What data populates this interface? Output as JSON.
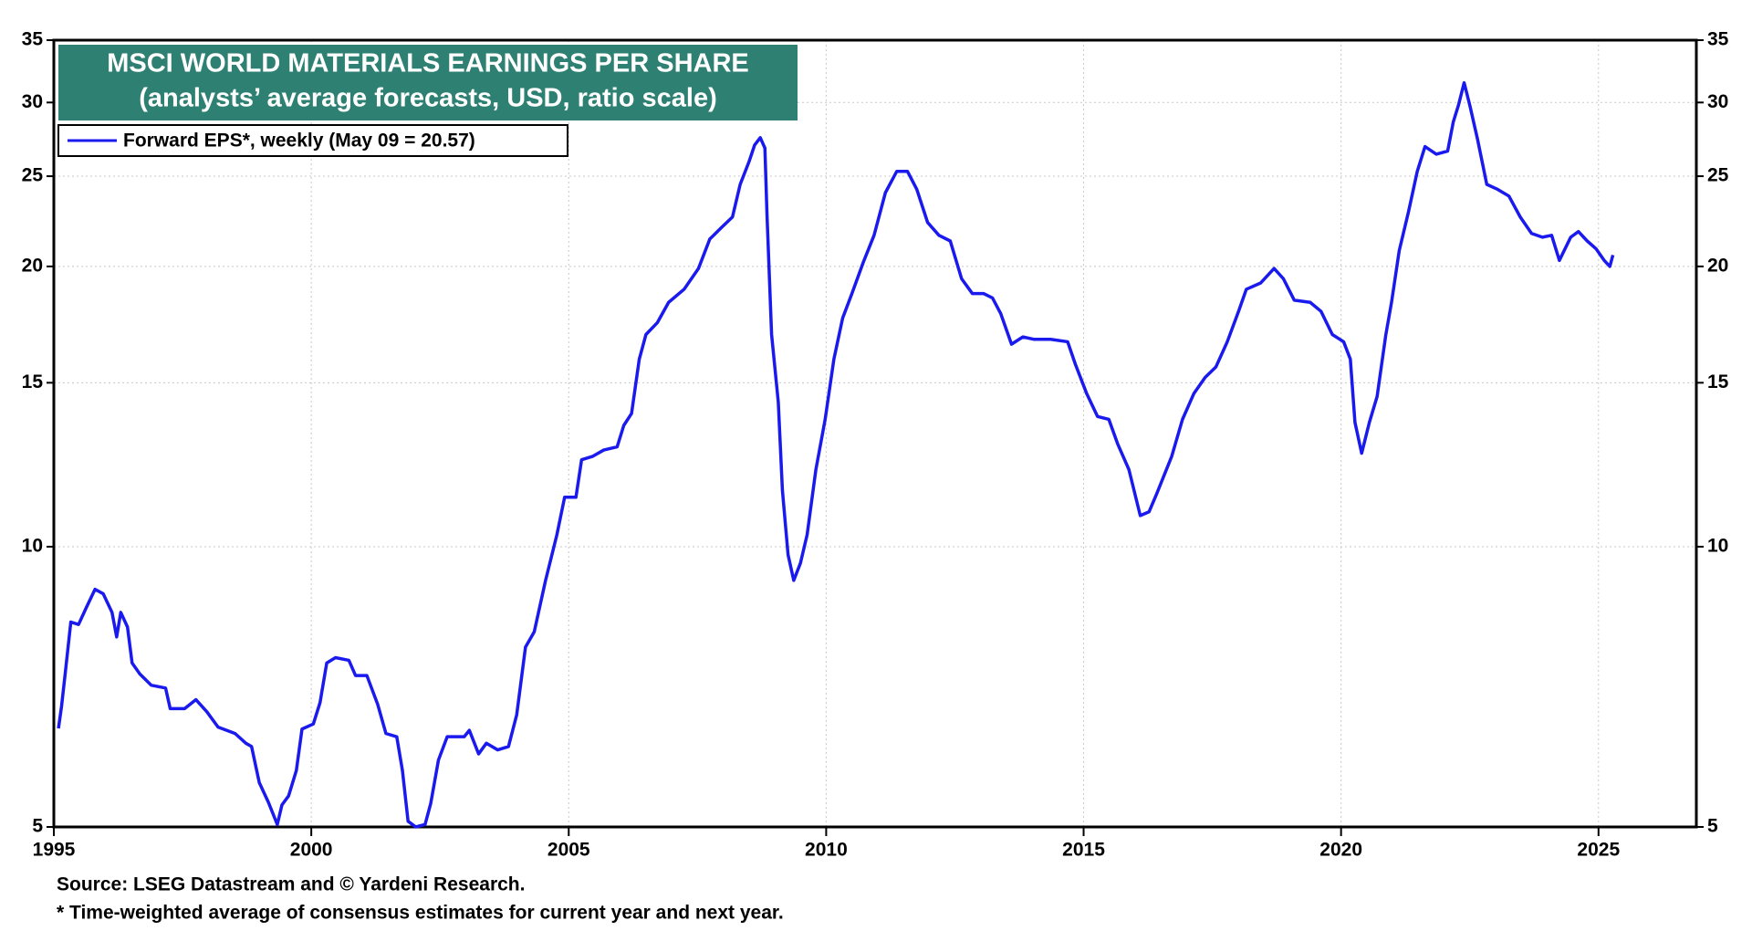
{
  "chart_data": {
    "type": "line",
    "title": "MSCI WORLD MATERIALS EARNINGS PER SHARE",
    "subtitle": "(analysts’ average forecasts, USD, ratio scale)",
    "source": "Source: LSEG Datastream and © Yardeni Research.",
    "note": "* Time-weighted average of consensus estimates for current year and next year.",
    "log_scale": true,
    "grid": true,
    "legend_position": "top-left",
    "xlim": [
      1995,
      2026.9
    ],
    "xticks": [
      1995,
      2000,
      2005,
      2010,
      2015,
      2020,
      2025
    ],
    "ylim": [
      5,
      35
    ],
    "yticks": [
      5,
      10,
      15,
      20,
      25,
      30,
      35
    ],
    "x": [
      1995.09,
      1995.15,
      1995.22,
      1995.33,
      1995.48,
      1995.63,
      1995.8,
      1995.96,
      1996.13,
      1996.22,
      1996.3,
      1996.43,
      1996.52,
      1996.67,
      1996.89,
      1997.17,
      1997.26,
      1997.54,
      1997.76,
      1997.97,
      1998.19,
      1998.52,
      1998.73,
      1998.84,
      1998.99,
      1999.17,
      1999.34,
      1999.43,
      1999.56,
      1999.71,
      1999.82,
      2000.04,
      2000.17,
      2000.3,
      2000.47,
      2000.73,
      2000.86,
      2001.08,
      2001.29,
      2001.45,
      2001.66,
      2001.77,
      2001.88,
      2002.03,
      2002.21,
      2002.32,
      2002.47,
      2002.64,
      2002.97,
      2003.07,
      2003.25,
      2003.4,
      2003.62,
      2003.83,
      2003.99,
      2004.16,
      2004.33,
      2004.55,
      2004.77,
      2004.92,
      2005.14,
      2005.25,
      2005.46,
      2005.68,
      2005.94,
      2006.07,
      2006.22,
      2006.37,
      2006.5,
      2006.72,
      2006.94,
      2007.24,
      2007.52,
      2007.74,
      2007.96,
      2008.18,
      2008.33,
      2008.5,
      2008.61,
      2008.72,
      2008.81,
      2008.85,
      2008.94,
      2009.07,
      2009.15,
      2009.26,
      2009.37,
      2009.5,
      2009.63,
      2009.8,
      2009.98,
      2010.15,
      2010.32,
      2010.5,
      2010.72,
      2010.93,
      2011.15,
      2011.37,
      2011.58,
      2011.76,
      2011.97,
      2012.19,
      2012.41,
      2012.63,
      2012.84,
      2013.06,
      2013.23,
      2013.39,
      2013.6,
      2013.82,
      2014.04,
      2014.36,
      2014.69,
      2014.84,
      2015.06,
      2015.27,
      2015.49,
      2015.66,
      2015.88,
      2016.1,
      2016.27,
      2016.42,
      2016.71,
      2016.92,
      2017.14,
      2017.36,
      2017.57,
      2017.79,
      2018.01,
      2018.16,
      2018.44,
      2018.7,
      2018.88,
      2019.09,
      2019.4,
      2019.61,
      2019.83,
      2020.05,
      2020.18,
      2020.27,
      2020.4,
      2020.55,
      2020.7,
      2020.87,
      2020.98,
      2021.13,
      2021.31,
      2021.48,
      2021.63,
      2021.85,
      2022.07,
      2022.18,
      2022.28,
      2022.39,
      2022.5,
      2022.65,
      2022.83,
      2023.04,
      2023.26,
      2023.48,
      2023.7,
      2023.91,
      2024.09,
      2024.24,
      2024.46,
      2024.61,
      2024.78,
      2024.95,
      2025.11,
      2025.22,
      2025.28
    ],
    "series": [
      {
        "name": "Forward EPS*, weekly (May 09 = 20.57)",
        "color": "#1a1aee",
        "values": [
          6.38,
          6.74,
          7.3,
          8.3,
          8.25,
          8.6,
          9.0,
          8.9,
          8.5,
          8.0,
          8.5,
          8.2,
          7.5,
          7.3,
          7.1,
          7.05,
          6.7,
          6.7,
          6.85,
          6.65,
          6.4,
          6.3,
          6.15,
          6.1,
          5.58,
          5.31,
          5.03,
          5.28,
          5.4,
          5.75,
          6.37,
          6.45,
          6.8,
          7.5,
          7.6,
          7.55,
          7.27,
          7.27,
          6.77,
          6.3,
          6.25,
          5.75,
          5.07,
          5.0,
          5.03,
          5.3,
          5.9,
          6.25,
          6.25,
          6.35,
          5.99,
          6.15,
          6.05,
          6.1,
          6.6,
          7.8,
          8.1,
          9.2,
          10.3,
          11.3,
          11.3,
          12.4,
          12.5,
          12.7,
          12.8,
          13.5,
          13.9,
          15.9,
          16.9,
          17.4,
          18.3,
          18.9,
          19.9,
          21.4,
          22.0,
          22.6,
          24.5,
          25.9,
          27.0,
          27.5,
          26.8,
          22.8,
          16.9,
          14.3,
          11.5,
          9.8,
          9.2,
          9.6,
          10.3,
          12.1,
          13.7,
          15.9,
          17.6,
          18.7,
          20.2,
          21.6,
          24.0,
          25.3,
          25.3,
          24.2,
          22.3,
          21.6,
          21.3,
          19.4,
          18.7,
          18.7,
          18.5,
          17.8,
          16.5,
          16.8,
          16.7,
          16.7,
          16.6,
          15.7,
          14.6,
          13.8,
          13.7,
          12.9,
          12.1,
          10.8,
          10.9,
          11.4,
          12.5,
          13.7,
          14.6,
          15.2,
          15.6,
          16.6,
          17.9,
          18.9,
          19.2,
          19.9,
          19.4,
          18.4,
          18.3,
          17.9,
          16.9,
          16.6,
          15.9,
          13.6,
          12.6,
          13.6,
          14.5,
          16.9,
          18.3,
          20.8,
          22.9,
          25.3,
          26.9,
          26.4,
          26.6,
          28.6,
          29.8,
          31.5,
          29.8,
          27.4,
          24.5,
          24.2,
          23.8,
          22.6,
          21.7,
          21.5,
          21.6,
          20.3,
          21.5,
          21.8,
          21.3,
          20.9,
          20.3,
          20.0,
          20.57
        ]
      }
    ]
  }
}
